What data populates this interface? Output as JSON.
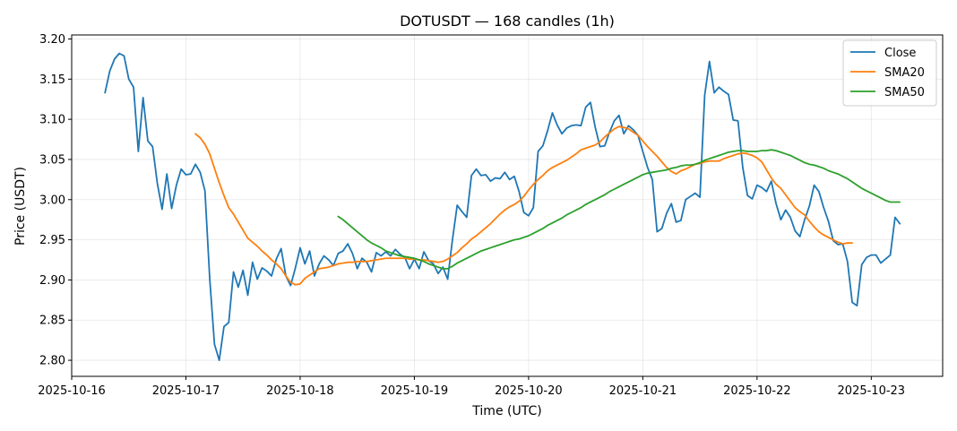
{
  "chart_data": {
    "type": "line",
    "title": "DOTUSDT — 168 candles (1h)",
    "xlabel": "Time (UTC)",
    "ylabel": "Price (USDT)",
    "x_range": [
      "2025-10-16T00:00",
      "2025-10-23T15:00"
    ],
    "ylim": [
      2.78,
      3.205
    ],
    "y_ticks": [
      "2.80",
      "2.85",
      "2.90",
      "2.95",
      "3.00",
      "3.05",
      "3.10",
      "3.15",
      "3.20"
    ],
    "x_ticks": [
      "2025-10-16",
      "2025-10-17",
      "2025-10-18",
      "2025-10-19",
      "2025-10-20",
      "2025-10-21",
      "2025-10-22",
      "2025-10-23"
    ],
    "grid": true,
    "legend_position": "top-right",
    "start_time": "2025-10-16T07:00",
    "interval_hours": 1,
    "series": [
      {
        "name": "Close",
        "color": "#1f77b4",
        "start_index": 0,
        "values": [
          3.133,
          3.16,
          3.175,
          3.182,
          3.179,
          3.15,
          3.14,
          3.06,
          3.127,
          3.073,
          3.066,
          3.02,
          2.988,
          3.032,
          2.989,
          3.018,
          3.038,
          3.031,
          3.032,
          3.044,
          3.034,
          3.011,
          2.902,
          2.82,
          2.8,
          2.842,
          2.847,
          2.91,
          2.891,
          2.912,
          2.881,
          2.922,
          2.901,
          2.915,
          2.911,
          2.905,
          2.926,
          2.939,
          2.905,
          2.893,
          2.915,
          2.94,
          2.92,
          2.936,
          2.905,
          2.92,
          2.93,
          2.925,
          2.918,
          2.933,
          2.936,
          2.945,
          2.933,
          2.914,
          2.927,
          2.922,
          2.91,
          2.934,
          2.93,
          2.935,
          2.93,
          2.938,
          2.932,
          2.928,
          2.914,
          2.926,
          2.914,
          2.935,
          2.924,
          2.92,
          2.908,
          2.916,
          2.901,
          2.95,
          2.993,
          2.985,
          2.978,
          3.03,
          3.038,
          3.03,
          3.031,
          3.023,
          3.027,
          3.026,
          3.034,
          3.025,
          3.029,
          3.01,
          2.984,
          2.98,
          2.99,
          3.06,
          3.067,
          3.086,
          3.108,
          3.093,
          3.082,
          3.089,
          3.092,
          3.093,
          3.092,
          3.115,
          3.121,
          3.09,
          3.066,
          3.067,
          3.084,
          3.098,
          3.105,
          3.082,
          3.092,
          3.087,
          3.08,
          3.06,
          3.04,
          3.025,
          2.96,
          2.964,
          2.983,
          2.995,
          2.972,
          2.974,
          3.0,
          3.004,
          3.008,
          3.003,
          3.13,
          3.172,
          3.133,
          3.14,
          3.135,
          3.131,
          3.099,
          3.098,
          3.04,
          3.005,
          3.001,
          3.018,
          3.015,
          3.01,
          3.023,
          2.995,
          2.975,
          2.987,
          2.978,
          2.961,
          2.954,
          2.975,
          2.992,
          3.018,
          3.01,
          2.99,
          2.973,
          2.949,
          2.944,
          2.945,
          2.923,
          2.872,
          2.868,
          2.919,
          2.928,
          2.931,
          2.931,
          2.921,
          2.926,
          2.931,
          2.978,
          2.97
        ]
      },
      {
        "name": "SMA20",
        "color": "#ff7f0e",
        "start_index": 19,
        "values": [
          3.082,
          3.077,
          3.069,
          3.057,
          3.039,
          3.021,
          3.005,
          2.99,
          2.982,
          2.972,
          2.962,
          2.952,
          2.947,
          2.942,
          2.936,
          2.931,
          2.925,
          2.92,
          2.914,
          2.905,
          2.897,
          2.894,
          2.895,
          2.902,
          2.906,
          2.91,
          2.914,
          2.915,
          2.916,
          2.918,
          2.92,
          2.921,
          2.922,
          2.922,
          2.923,
          2.923,
          2.923,
          2.924,
          2.925,
          2.926,
          2.927,
          2.927,
          2.927,
          2.927,
          2.927,
          2.926,
          2.926,
          2.925,
          2.925,
          2.924,
          2.923,
          2.922,
          2.923,
          2.926,
          2.93,
          2.934,
          2.94,
          2.945,
          2.951,
          2.955,
          2.96,
          2.965,
          2.97,
          2.976,
          2.982,
          2.987,
          2.991,
          2.994,
          2.998,
          3.004,
          3.012,
          3.019,
          3.025,
          3.03,
          3.036,
          3.04,
          3.043,
          3.046,
          3.049,
          3.053,
          3.057,
          3.062,
          3.064,
          3.066,
          3.068,
          3.072,
          3.078,
          3.083,
          3.088,
          3.091,
          3.09,
          3.088,
          3.084,
          3.08,
          3.073,
          3.066,
          3.06,
          3.054,
          3.047,
          3.04,
          3.035,
          3.032,
          3.036,
          3.038,
          3.041,
          3.044,
          3.045,
          3.047,
          3.048,
          3.048,
          3.048,
          3.051,
          3.053,
          3.055,
          3.057,
          3.058,
          3.057,
          3.055,
          3.052,
          3.047,
          3.037,
          3.027,
          3.019,
          3.014,
          3.006,
          2.998,
          2.99,
          2.985,
          2.981,
          2.973,
          2.966,
          2.96,
          2.956,
          2.953,
          2.95,
          2.947,
          2.945,
          2.946,
          2.946
        ]
      },
      {
        "name": "SMA50",
        "color": "#2ca02c",
        "start_index": 49,
        "values": [
          2.979,
          2.975,
          2.97,
          2.965,
          2.96,
          2.955,
          2.95,
          2.946,
          2.943,
          2.94,
          2.936,
          2.934,
          2.932,
          2.93,
          2.929,
          2.928,
          2.927,
          2.925,
          2.923,
          2.92,
          2.918,
          2.916,
          2.914,
          2.914,
          2.917,
          2.921,
          2.924,
          2.927,
          2.93,
          2.933,
          2.936,
          2.938,
          2.94,
          2.942,
          2.944,
          2.946,
          2.948,
          2.95,
          2.951,
          2.953,
          2.955,
          2.958,
          2.961,
          2.964,
          2.968,
          2.971,
          2.974,
          2.977,
          2.981,
          2.984,
          2.987,
          2.99,
          2.994,
          2.997,
          3.0,
          3.003,
          3.006,
          3.01,
          3.013,
          3.016,
          3.019,
          3.022,
          3.025,
          3.028,
          3.031,
          3.033,
          3.034,
          3.035,
          3.036,
          3.037,
          3.039,
          3.04,
          3.042,
          3.043,
          3.043,
          3.044,
          3.046,
          3.049,
          3.051,
          3.053,
          3.055,
          3.057,
          3.059,
          3.06,
          3.061,
          3.061,
          3.06,
          3.06,
          3.06,
          3.061,
          3.061,
          3.062,
          3.061,
          3.059,
          3.057,
          3.055,
          3.052,
          3.049,
          3.046,
          3.044,
          3.043,
          3.041,
          3.039,
          3.036,
          3.034,
          3.032,
          3.029,
          3.026,
          3.022,
          3.018,
          3.014,
          3.011,
          3.008,
          3.005,
          3.002,
          2.999,
          2.997,
          2.997,
          2.997
        ]
      }
    ]
  }
}
